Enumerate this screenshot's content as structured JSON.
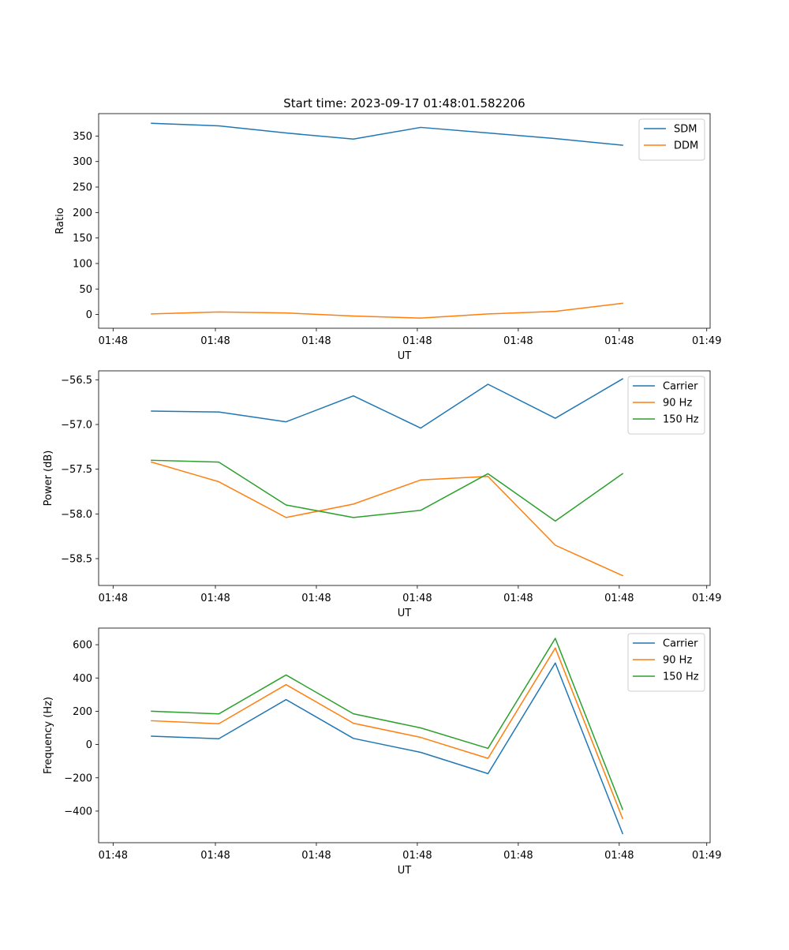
{
  "figure": {
    "title": "Start time: 2023-09-17 01:48:01.582206"
  },
  "colors": {
    "blue": "#1f77b4",
    "orange": "#ff7f0e",
    "green": "#2ca02c"
  },
  "chart_data": [
    {
      "type": "line",
      "title": "Start time: 2023-09-17 01:48:01.582206",
      "xlabel": "UT",
      "ylabel": "Ratio",
      "x": [
        1,
        2,
        3,
        4,
        5,
        6,
        7,
        8
      ],
      "xlim": [
        0.215,
        9.3
      ],
      "xticks": [
        0.43,
        1.95,
        3.45,
        4.95,
        6.45,
        7.95,
        9.25
      ],
      "xticklabels": [
        "01:48",
        "01:48",
        "01:48",
        "01:48",
        "01:48",
        "01:48",
        "01:48"
      ],
      "xticklabel_last": "01:49",
      "ylim": [
        -27,
        394
      ],
      "yticks": [
        0,
        50,
        100,
        150,
        200,
        250,
        300,
        350
      ],
      "yticklabels": [
        "0",
        "50",
        "100",
        "150",
        "200",
        "250",
        "300",
        "350"
      ],
      "legend": "top-right",
      "series": [
        {
          "name": "SDM",
          "color": "#1f77b4",
          "values": [
            375,
            370,
            356,
            344,
            367,
            356,
            345,
            332
          ]
        },
        {
          "name": "DDM",
          "color": "#ff7f0e",
          "values": [
            1,
            5,
            3,
            -3,
            -7,
            1,
            6,
            22
          ]
        }
      ]
    },
    {
      "type": "line",
      "title": "",
      "xlabel": "UT",
      "ylabel": "Power (dB)",
      "x": [
        1,
        2,
        3,
        4,
        5,
        6,
        7,
        8
      ],
      "xlim": [
        0.215,
        9.3
      ],
      "xticks": [
        0.43,
        1.95,
        3.45,
        4.95,
        6.45,
        7.95,
        9.25
      ],
      "xticklabels": [
        "01:48",
        "01:48",
        "01:48",
        "01:48",
        "01:48",
        "01:48",
        "01:48"
      ],
      "xticklabel_last": "01:49",
      "ylim": [
        -58.8,
        -56.4
      ],
      "yticks": [
        -58.5,
        -58.0,
        -57.5,
        -57.0,
        -56.5
      ],
      "yticklabels": [
        "−58.5",
        "−58.0",
        "−57.5",
        "−57.0",
        "−56.5"
      ],
      "legend": "top-right",
      "series": [
        {
          "name": "Carrier",
          "color": "#1f77b4",
          "values": [
            -56.85,
            -56.86,
            -56.97,
            -56.68,
            -57.04,
            -56.55,
            -56.93,
            -56.49
          ]
        },
        {
          "name": "90 Hz",
          "color": "#ff7f0e",
          "values": [
            -57.42,
            -57.64,
            -58.04,
            -57.89,
            -57.62,
            -57.58,
            -58.35,
            -58.69
          ]
        },
        {
          "name": "150 Hz",
          "color": "#2ca02c",
          "values": [
            -57.4,
            -57.42,
            -57.9,
            -58.04,
            -57.96,
            -57.55,
            -58.08,
            -57.55
          ]
        }
      ]
    },
    {
      "type": "line",
      "title": "",
      "xlabel": "UT",
      "ylabel": "Frequency (Hz)",
      "x": [
        1,
        2,
        3,
        4,
        5,
        6,
        7,
        8
      ],
      "xlim": [
        0.215,
        9.3
      ],
      "xticks": [
        0.43,
        1.95,
        3.45,
        4.95,
        6.45,
        7.95,
        9.25
      ],
      "xticklabels": [
        "01:48",
        "01:48",
        "01:48",
        "01:48",
        "01:48",
        "01:48",
        "01:48"
      ],
      "xticklabel_last": "01:49",
      "ylim": [
        -590,
        700
      ],
      "yticks": [
        -400,
        -200,
        0,
        200,
        400,
        600
      ],
      "yticklabels": [
        "−400",
        "−200",
        "0",
        "200",
        "400",
        "600"
      ],
      "legend": "top-right",
      "series": [
        {
          "name": "Carrier",
          "color": "#1f77b4",
          "values": [
            50,
            35,
            270,
            37,
            -47,
            -175,
            490,
            -535
          ]
        },
        {
          "name": "90 Hz",
          "color": "#ff7f0e",
          "values": [
            143,
            125,
            360,
            128,
            43,
            -83,
            580,
            -445
          ]
        },
        {
          "name": "150 Hz",
          "color": "#2ca02c",
          "values": [
            200,
            184,
            418,
            185,
            100,
            -23,
            638,
            -390
          ]
        }
      ]
    }
  ]
}
